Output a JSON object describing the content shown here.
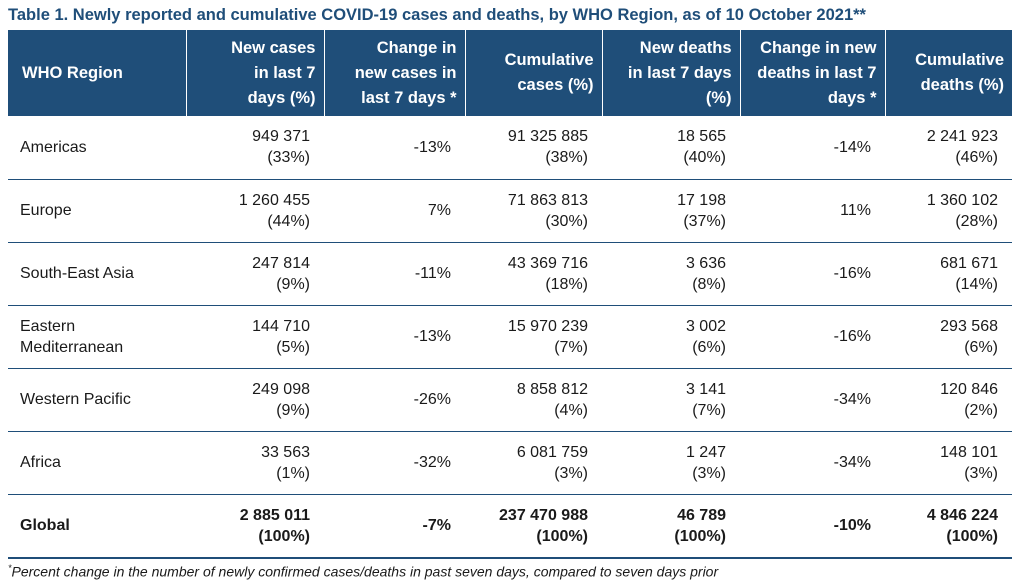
{
  "title": "Table 1. Newly reported and cumulative COVID-19 cases and deaths, by WHO Region, as of 10 October 2021**",
  "headers": [
    [
      "WHO Region"
    ],
    [
      "New cases",
      "in last 7",
      "days (%)"
    ],
    [
      "Change in",
      "new cases in",
      "last 7 days *"
    ],
    [
      "Cumulative",
      "cases (%)"
    ],
    [
      "New deaths",
      "in last 7 days",
      "(%)"
    ],
    [
      "Change in new",
      "deaths in last 7",
      "days *"
    ],
    [
      "Cumulative",
      "deaths (%)"
    ]
  ],
  "rows": [
    {
      "region": [
        "Americas"
      ],
      "new_cases": "949 371",
      "new_cases_pct": "(33%)",
      "change_cases": "-13%",
      "cum_cases": "91 325 885",
      "cum_cases_pct": "(38%)",
      "new_deaths": "18 565",
      "new_deaths_pct": "(40%)",
      "change_deaths": "-14%",
      "cum_deaths": "2 241 923",
      "cum_deaths_pct": "(46%)"
    },
    {
      "region": [
        "Europe"
      ],
      "new_cases": "1 260 455",
      "new_cases_pct": "(44%)",
      "change_cases": "7%",
      "cum_cases": "71 863 813",
      "cum_cases_pct": "(30%)",
      "new_deaths": "17 198",
      "new_deaths_pct": "(37%)",
      "change_deaths": "11%",
      "cum_deaths": "1 360 102",
      "cum_deaths_pct": "(28%)"
    },
    {
      "region": [
        "South-East Asia"
      ],
      "new_cases": "247 814",
      "new_cases_pct": "(9%)",
      "change_cases": "-11%",
      "cum_cases": "43 369 716",
      "cum_cases_pct": "(18%)",
      "new_deaths": "3 636",
      "new_deaths_pct": "(8%)",
      "change_deaths": "-16%",
      "cum_deaths": "681 671",
      "cum_deaths_pct": "(14%)"
    },
    {
      "region": [
        "Eastern",
        "Mediterranean"
      ],
      "new_cases": "144 710",
      "new_cases_pct": "(5%)",
      "change_cases": "-13%",
      "cum_cases": "15 970 239",
      "cum_cases_pct": "(7%)",
      "new_deaths": "3 002",
      "new_deaths_pct": "(6%)",
      "change_deaths": "-16%",
      "cum_deaths": "293 568",
      "cum_deaths_pct": "(6%)"
    },
    {
      "region": [
        "Western Pacific"
      ],
      "new_cases": "249 098",
      "new_cases_pct": "(9%)",
      "change_cases": "-26%",
      "cum_cases": "8 858 812",
      "cum_cases_pct": "(4%)",
      "new_deaths": "3 141",
      "new_deaths_pct": "(7%)",
      "change_deaths": "-34%",
      "cum_deaths": "120 846",
      "cum_deaths_pct": "(2%)"
    },
    {
      "region": [
        "Africa"
      ],
      "new_cases": "33 563",
      "new_cases_pct": "(1%)",
      "change_cases": "-32%",
      "cum_cases": "6 081 759",
      "cum_cases_pct": "(3%)",
      "new_deaths": "1 247",
      "new_deaths_pct": "(3%)",
      "change_deaths": "-34%",
      "cum_deaths": "148 101",
      "cum_deaths_pct": "(3%)"
    },
    {
      "region": [
        "Global"
      ],
      "new_cases": "2 885 011",
      "new_cases_pct": "(100%)",
      "change_cases": "-7%",
      "cum_cases": "237 470 988",
      "cum_cases_pct": "(100%)",
      "new_deaths": "46 789",
      "new_deaths_pct": "(100%)",
      "change_deaths": "-10%",
      "cum_deaths": "4 846 224",
      "cum_deaths_pct": "(100%)",
      "is_total": true
    }
  ],
  "footnote": {
    "marker": "*",
    "text": "Percent change in the number of newly confirmed cases/deaths in past seven days, compared to seven days prior"
  },
  "colors": {
    "header_bg": "#1f4e79",
    "header_text": "#ffffff",
    "title_text": "#1f4e79",
    "row_border": "#1f4e79"
  }
}
